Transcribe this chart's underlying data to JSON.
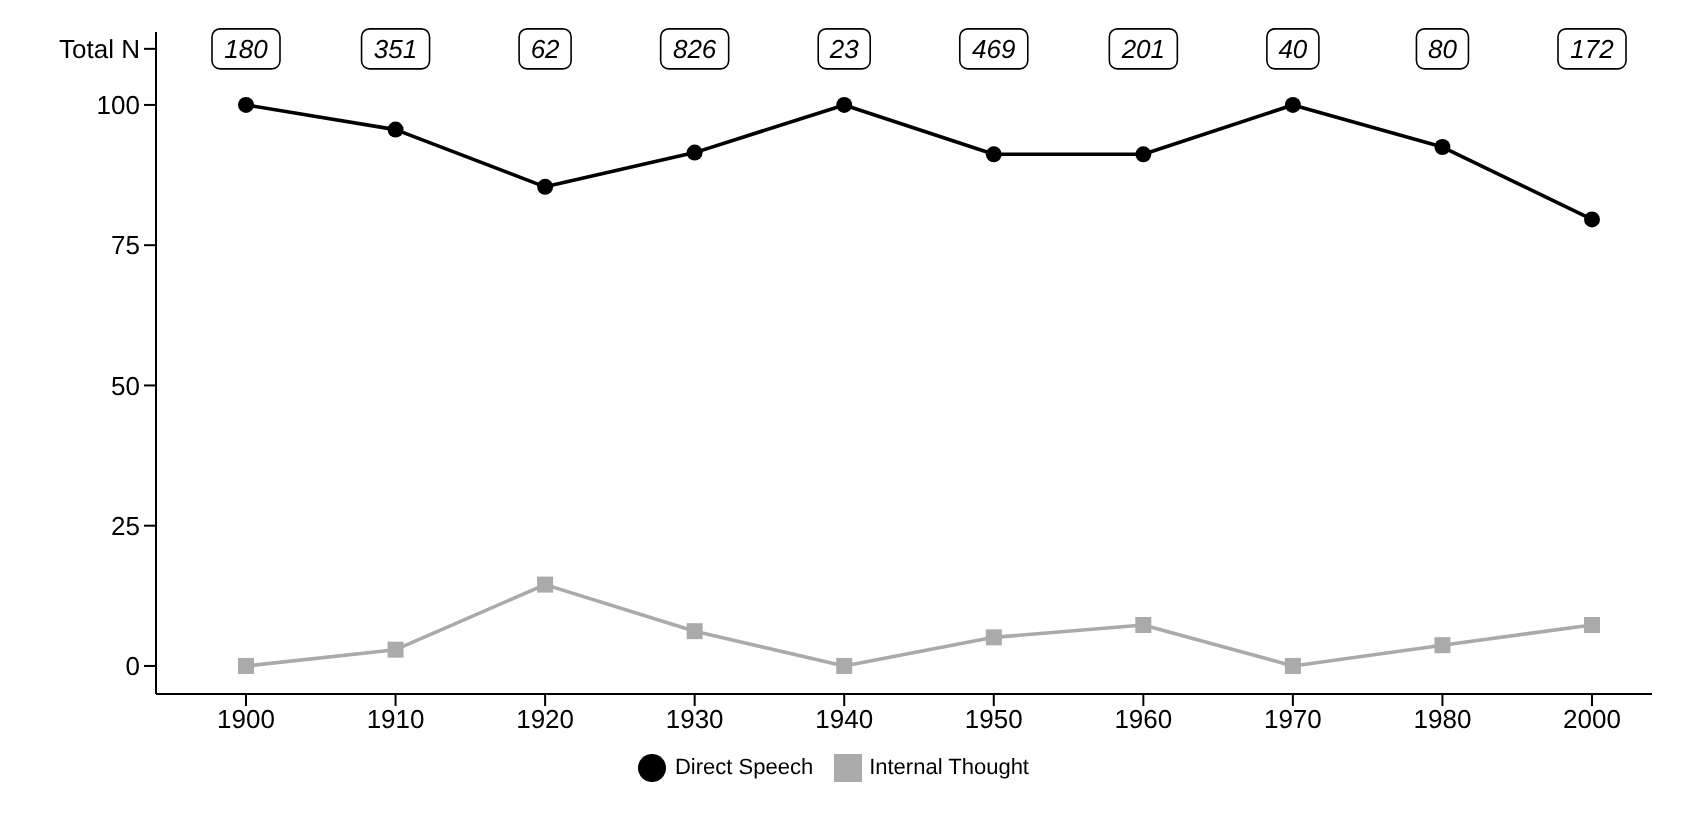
{
  "chart_data": {
    "type": "line",
    "categories": [
      "1900",
      "1910",
      "1920",
      "1930",
      "1940",
      "1950",
      "1960",
      "1970",
      "1980",
      "2000"
    ],
    "series": [
      {
        "name": "Direct Speech",
        "color": "#000000",
        "marker": "circle",
        "values": [
          100,
          95.6,
          85.4,
          91.5,
          100,
          91.2,
          91.2,
          100,
          92.5,
          79.6
        ]
      },
      {
        "name": "Internal Thought",
        "color": "#aaaaaa",
        "marker": "square",
        "values": [
          0,
          2.9,
          14.5,
          6.2,
          0,
          5.1,
          7.3,
          0,
          3.7,
          7.3
        ]
      }
    ],
    "ylim": [
      -5,
      113
    ],
    "yticks": [
      0,
      25,
      50,
      75,
      100,
      {
        "value": 110,
        "label": "Total N"
      }
    ],
    "annotations": [
      {
        "text": "180",
        "x": "1900",
        "y": 110
      },
      {
        "text": "351",
        "x": "1910",
        "y": 110
      },
      {
        "text": "62",
        "x": "1920",
        "y": 110
      },
      {
        "text": "826",
        "x": "1930",
        "y": 110
      },
      {
        "text": "23",
        "x": "1940",
        "y": 110
      },
      {
        "text": "469",
        "x": "1950",
        "y": 110
      },
      {
        "text": "201",
        "x": "1960",
        "y": 110
      },
      {
        "text": "40",
        "x": "1970",
        "y": 110
      },
      {
        "text": "80",
        "x": "1980",
        "y": 110
      },
      {
        "text": "172",
        "x": "2000",
        "y": 110
      }
    ],
    "grid": false,
    "legend": "bottom"
  }
}
